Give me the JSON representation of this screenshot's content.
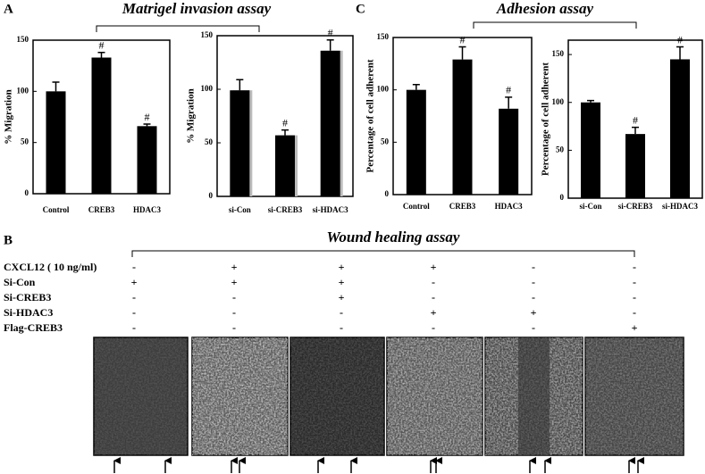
{
  "figure": {
    "panel_a": {
      "label": "A",
      "title": "Matrigel invasion assay"
    },
    "panel_b": {
      "label": "B",
      "title": "Wound healing assay"
    },
    "panel_c": {
      "label": "C",
      "title": "Adhesion assay"
    }
  },
  "chart_data": [
    {
      "type": "bar",
      "y_label": "% Migration",
      "categories": [
        "Control",
        "CREB3",
        "HDAC3"
      ],
      "values": [
        100,
        133,
        66
      ],
      "errors": [
        9,
        5,
        2
      ],
      "significance": [
        null,
        "#",
        "#"
      ],
      "color": "#000000",
      "ylim": [
        0,
        150
      ],
      "yticks": [
        0,
        50,
        100,
        150
      ]
    },
    {
      "type": "bar",
      "y_label": "% Migration",
      "categories": [
        "si-Con",
        "si-CREB3",
        "si-HDAC3"
      ],
      "values": [
        99,
        57,
        136
      ],
      "errors": [
        10,
        5,
        10
      ],
      "significance": [
        null,
        "#",
        "#"
      ],
      "color": "#000000",
      "shadow_color": "#bbbbbb",
      "ylim": [
        0,
        150
      ],
      "yticks": [
        0,
        50,
        100,
        150
      ]
    },
    {
      "type": "bar",
      "y_label": "Percentage of cell adherent",
      "categories": [
        "Control",
        "CREB3",
        "HDAC3"
      ],
      "values": [
        100,
        129,
        82
      ],
      "errors": [
        5,
        12,
        11
      ],
      "significance": [
        null,
        "#",
        "#"
      ],
      "color": "#000000",
      "ylim": [
        0,
        150
      ],
      "yticks": [
        0,
        50,
        100,
        150
      ]
    },
    {
      "type": "bar",
      "y_label": "Percentage of cell adherent",
      "categories": [
        "si-Con",
        "si-CREB3",
        "si-HDAC3"
      ],
      "values": [
        100,
        67,
        145
      ],
      "errors": [
        2,
        7,
        13
      ],
      "significance": [
        null,
        "#",
        "#"
      ],
      "color": "#000000",
      "ylim": [
        0,
        165
      ],
      "yticks": [
        0,
        50,
        100,
        150
      ]
    }
  ],
  "wound_table": {
    "rows": [
      {
        "name": "CXCL12 ( 10 ng/ml)",
        "cells": [
          "-",
          "+",
          "+",
          "+",
          "-",
          "-"
        ]
      },
      {
        "name": "Si-Con",
        "cells": [
          "+",
          "+",
          "+",
          "-",
          "-",
          "-"
        ]
      },
      {
        "name": "Si-CREB3",
        "cells": [
          "-",
          "-",
          "+",
          "-",
          "-",
          "-"
        ]
      },
      {
        "name": "Si-HDAC3",
        "cells": [
          "-",
          "-",
          "-",
          "+",
          "+",
          "-"
        ]
      },
      {
        "name": "Flag-CREB3",
        "cells": [
          "-",
          "-",
          "-",
          "-",
          "-",
          "+"
        ]
      }
    ]
  }
}
